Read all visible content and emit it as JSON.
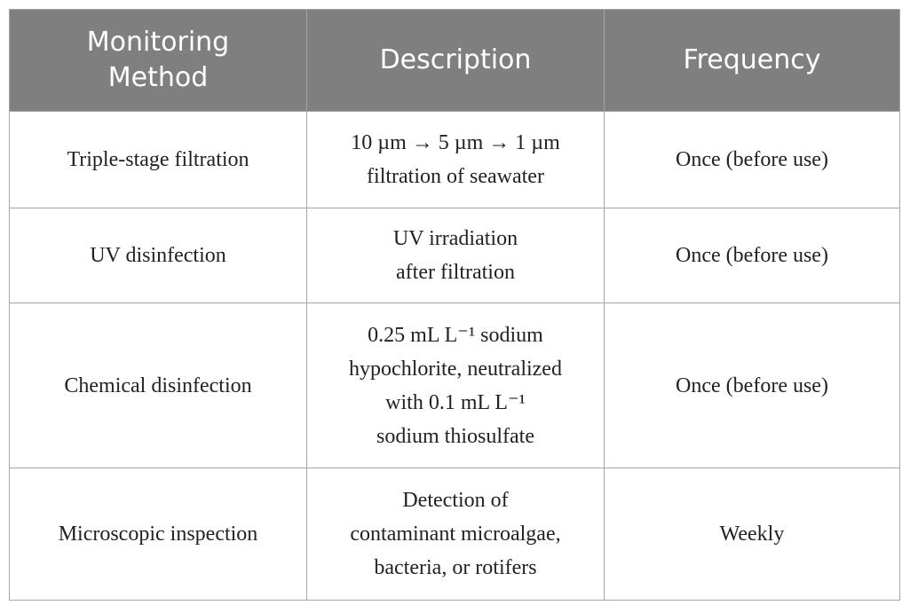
{
  "table": {
    "header": [
      [
        "Monitoring",
        "Method"
      ],
      [
        "Description"
      ],
      [
        "Frequency"
      ]
    ],
    "rows": [
      [
        [
          "Triple-stage filtration"
        ],
        [
          "10 µm → 5 µm → 1 µm",
          "filtration of seawater"
        ],
        [
          "Once (before use)"
        ]
      ],
      [
        [
          "UV disinfection"
        ],
        [
          "UV irradiation",
          "after filtration"
        ],
        [
          "Once (before use)"
        ]
      ],
      [
        [
          "Chemical disinfection"
        ],
        [
          "0.25 mL L⁻¹ sodium",
          "hypochlorite, neutralized",
          "with 0.1 mL L⁻¹",
          "sodium thiosulfate"
        ],
        [
          "Once (before use)"
        ]
      ],
      [
        [
          "Microscopic inspection"
        ],
        [
          "Detection of",
          "contaminant microalgae,",
          "bacteria, or rotifers"
        ],
        [
          "Weekly"
        ]
      ]
    ]
  }
}
